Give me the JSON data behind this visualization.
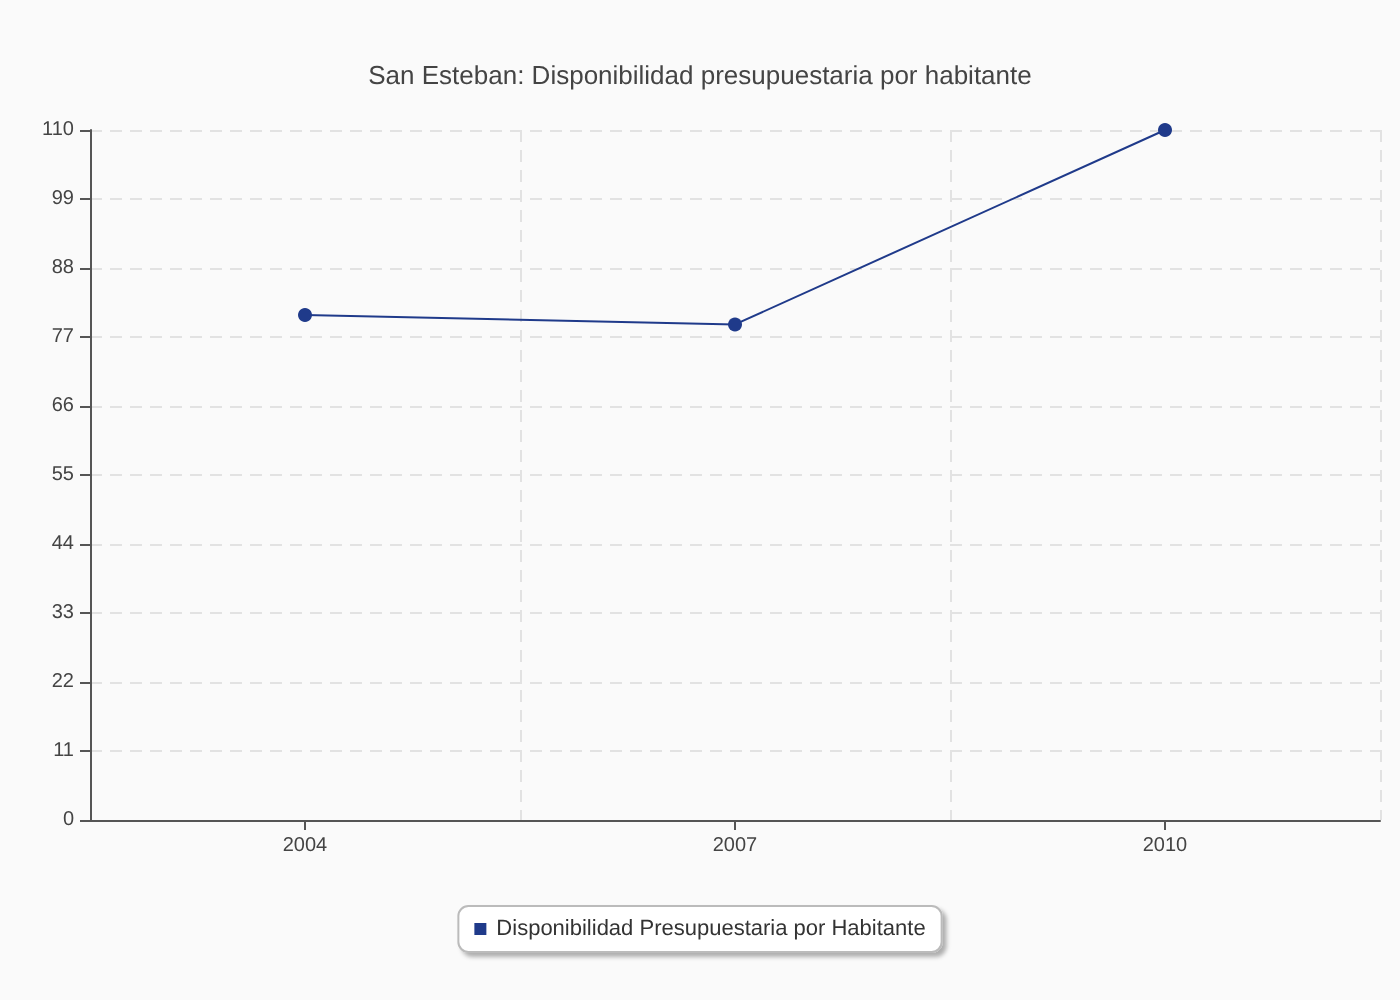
{
  "chart_data": {
    "type": "line",
    "title": "San Esteban: Disponibilidad presupuestaria por habitante",
    "categories": [
      "2004",
      "2007",
      "2010"
    ],
    "series": [
      {
        "name": "Disponibilidad Presupuestaria por Habitante",
        "color": "#1f3a8a",
        "values": [
          80.5,
          79,
          110
        ]
      }
    ],
    "ylim": [
      0,
      110
    ],
    "yticks": [
      0,
      11,
      22,
      33,
      44,
      55,
      66,
      77,
      88,
      99,
      110
    ],
    "grid": true,
    "legend": "bottom",
    "marker": "circle",
    "line_style": "solid"
  }
}
